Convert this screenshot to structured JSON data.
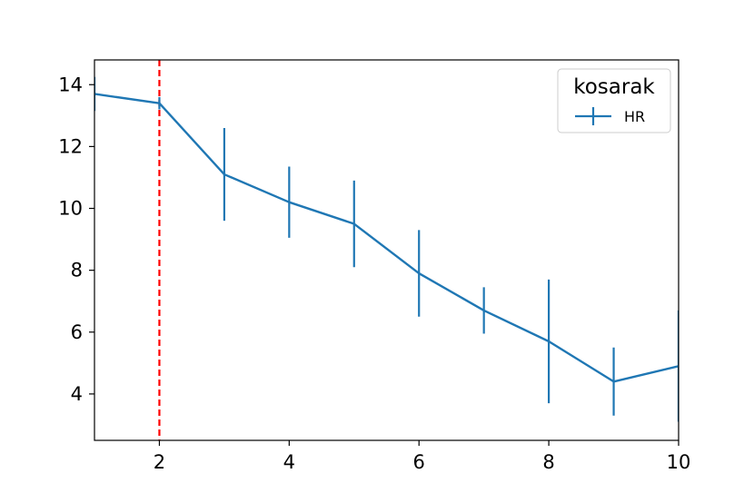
{
  "chart_data": {
    "type": "line",
    "title": "",
    "xlabel": "",
    "ylabel": "",
    "xlim": [
      1,
      10
    ],
    "ylim": [
      2.5,
      14.8
    ],
    "xticks": [
      2,
      4,
      6,
      8,
      10
    ],
    "yticks": [
      4,
      6,
      8,
      10,
      12,
      14
    ],
    "grid": false,
    "legend": {
      "title": "kosarak",
      "placement": "top-right"
    },
    "series": [
      {
        "name": "HR",
        "color": "#1f77b4",
        "x": [
          1,
          2,
          3,
          4,
          5,
          6,
          7,
          8,
          9,
          10
        ],
        "y": [
          13.7,
          13.4,
          11.1,
          10.2,
          9.5,
          7.9,
          6.7,
          5.7,
          4.4,
          4.9
        ],
        "yerr": [
          0.55,
          0.2,
          1.5,
          1.15,
          1.4,
          1.4,
          0.75,
          2.0,
          1.1,
          1.8
        ]
      }
    ],
    "vline": {
      "x": 2,
      "color": "#ff0000",
      "style": "dashed"
    }
  }
}
